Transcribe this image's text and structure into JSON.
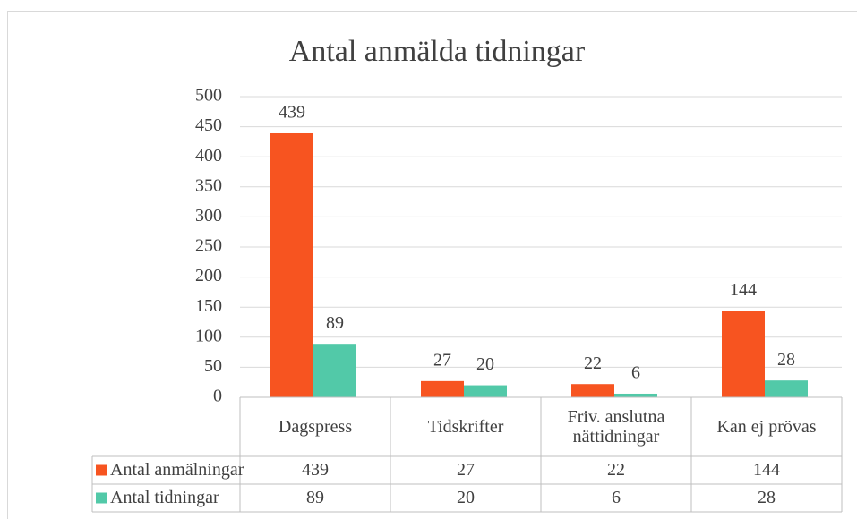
{
  "chart_data": {
    "type": "bar",
    "title": "Antal anmälda tidningar",
    "categories": [
      "Dagspress",
      "Tidskrifter",
      "Friv. anslutna nättidningar",
      "Kan ej prövas"
    ],
    "series": [
      {
        "name": "Antal anmälningar",
        "color": "#f75420",
        "values": [
          439,
          27,
          22,
          144
        ]
      },
      {
        "name": "Antal tidningar",
        "color": "#52c9a8",
        "values": [
          89,
          20,
          6,
          28
        ]
      }
    ],
    "ylim": [
      0,
      500
    ],
    "yticks": [
      0,
      50,
      100,
      150,
      200,
      250,
      300,
      350,
      400,
      450,
      500
    ],
    "grid": true
  }
}
